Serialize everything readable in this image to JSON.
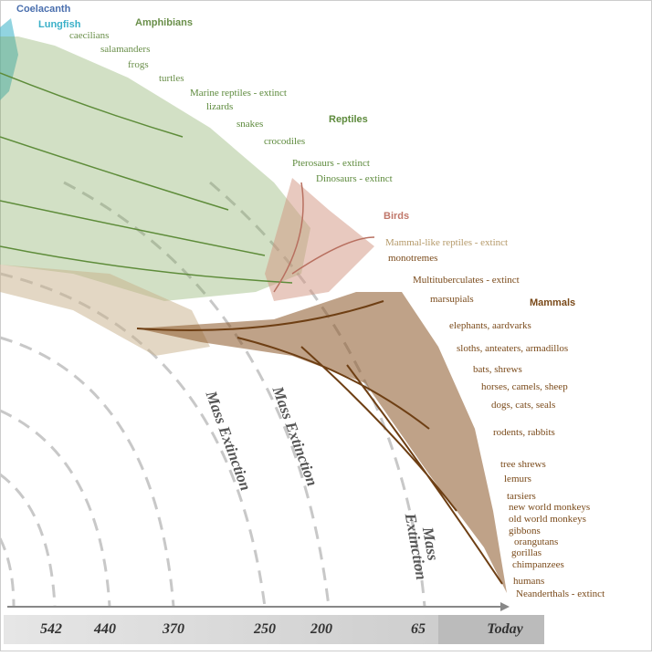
{
  "groups": {
    "coelacanth": "Coelacanth",
    "lungfish": "Lungfish",
    "amphibians": "Amphibians",
    "reptiles": "Reptiles",
    "birds": "Birds",
    "mammals": "Mammals"
  },
  "taxa": [
    "caecilians",
    "salamanders",
    "frogs",
    "turtles",
    "Marine reptiles - extinct",
    "lizards",
    "snakes",
    "crocodiles",
    "Pterosaurs - extinct",
    "Dinosaurs - extinct",
    "Mammal-like reptiles - extinct",
    "monotremes",
    "Multituberculates - extinct",
    "marsupials",
    "elephants, aardvarks",
    "sloths, anteaters, armadillos",
    "bats, shrews",
    "horses, camels, sheep",
    "dogs, cats, seals",
    "rodents, rabbits",
    "tree shrews",
    "lemurs",
    "tarsiers",
    "new world monkeys",
    "old world monkeys",
    "gibbons",
    "orangutans",
    "gorillas",
    "chimpanzees",
    "humans",
    "Neanderthals - extinct"
  ],
  "extinctions": [
    [
      "Mass Extinction"
    ],
    [
      "Mass Extinction"
    ],
    [
      "Mass",
      "Extinction"
    ]
  ],
  "timeline": [
    "542",
    "440",
    "370",
    "250",
    "200",
    "65",
    "Today"
  ]
}
